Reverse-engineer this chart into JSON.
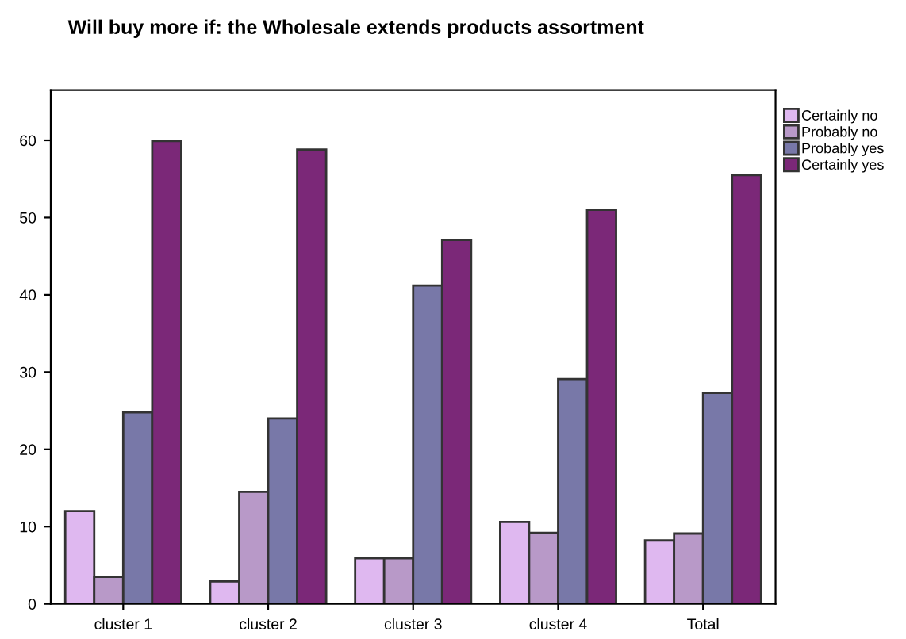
{
  "chart_data": {
    "type": "bar",
    "title": "Will buy more if: the Wholesale extends products assortment",
    "categories": [
      "cluster 1",
      "cluster 2",
      "cluster 3",
      "cluster 4",
      "Total"
    ],
    "series": [
      {
        "name": "Certainly no",
        "color": "#dfb8f0",
        "values": [
          12.0,
          2.9,
          5.9,
          10.6,
          8.2
        ]
      },
      {
        "name": "Probably no",
        "color": "#b899c8",
        "values": [
          3.5,
          14.5,
          5.9,
          9.2,
          9.1
        ]
      },
      {
        "name": "Probably yes",
        "color": "#7878a8",
        "values": [
          24.8,
          24.0,
          41.2,
          29.1,
          27.3
        ]
      },
      {
        "name": "Certainly yes",
        "color": "#7b2878",
        "values": [
          59.9,
          58.8,
          47.1,
          51.0,
          55.5
        ]
      }
    ],
    "ylim": [
      0,
      66.5
    ],
    "yticks": [
      0,
      10,
      20,
      30,
      40,
      50,
      60
    ],
    "grid": false,
    "legend": "top right"
  }
}
